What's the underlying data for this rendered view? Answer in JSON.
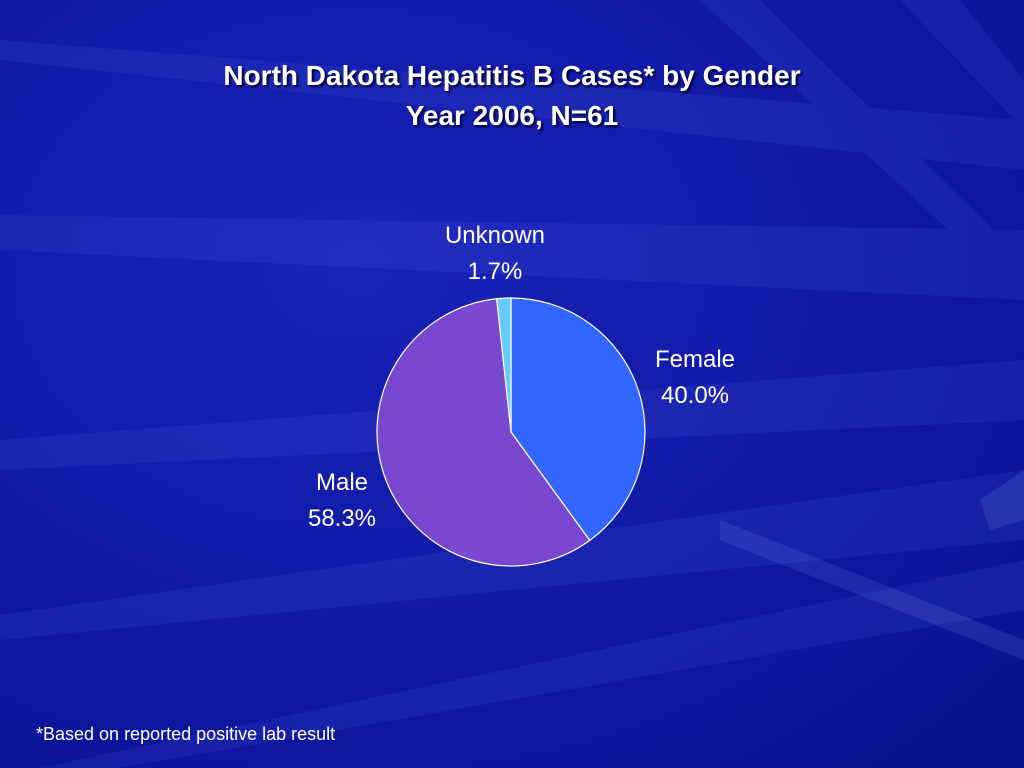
{
  "slide": {
    "title_line1": "North Dakota Hepatitis B Cases* by Gender",
    "title_line2": "Year 2006, N=61",
    "footnote": "*Based on reported positive lab result",
    "background_color": "#0e18a0"
  },
  "chart_data": {
    "type": "pie",
    "title": "North Dakota Hepatitis B Cases* by Gender\nYear 2006, N=61",
    "slices": [
      {
        "label": "Female",
        "value": 40.0,
        "value_label": "40.0%",
        "color": "#3366ff"
      },
      {
        "label": "Male",
        "value": 58.3,
        "value_label": "58.3%",
        "color": "#7a48d0"
      },
      {
        "label": "Unknown",
        "value": 1.7,
        "value_label": "1.7%",
        "color": "#66ccff"
      }
    ],
    "start": "12 o'clock",
    "direction": "clockwise",
    "legend": "none (labels outside slices)"
  }
}
